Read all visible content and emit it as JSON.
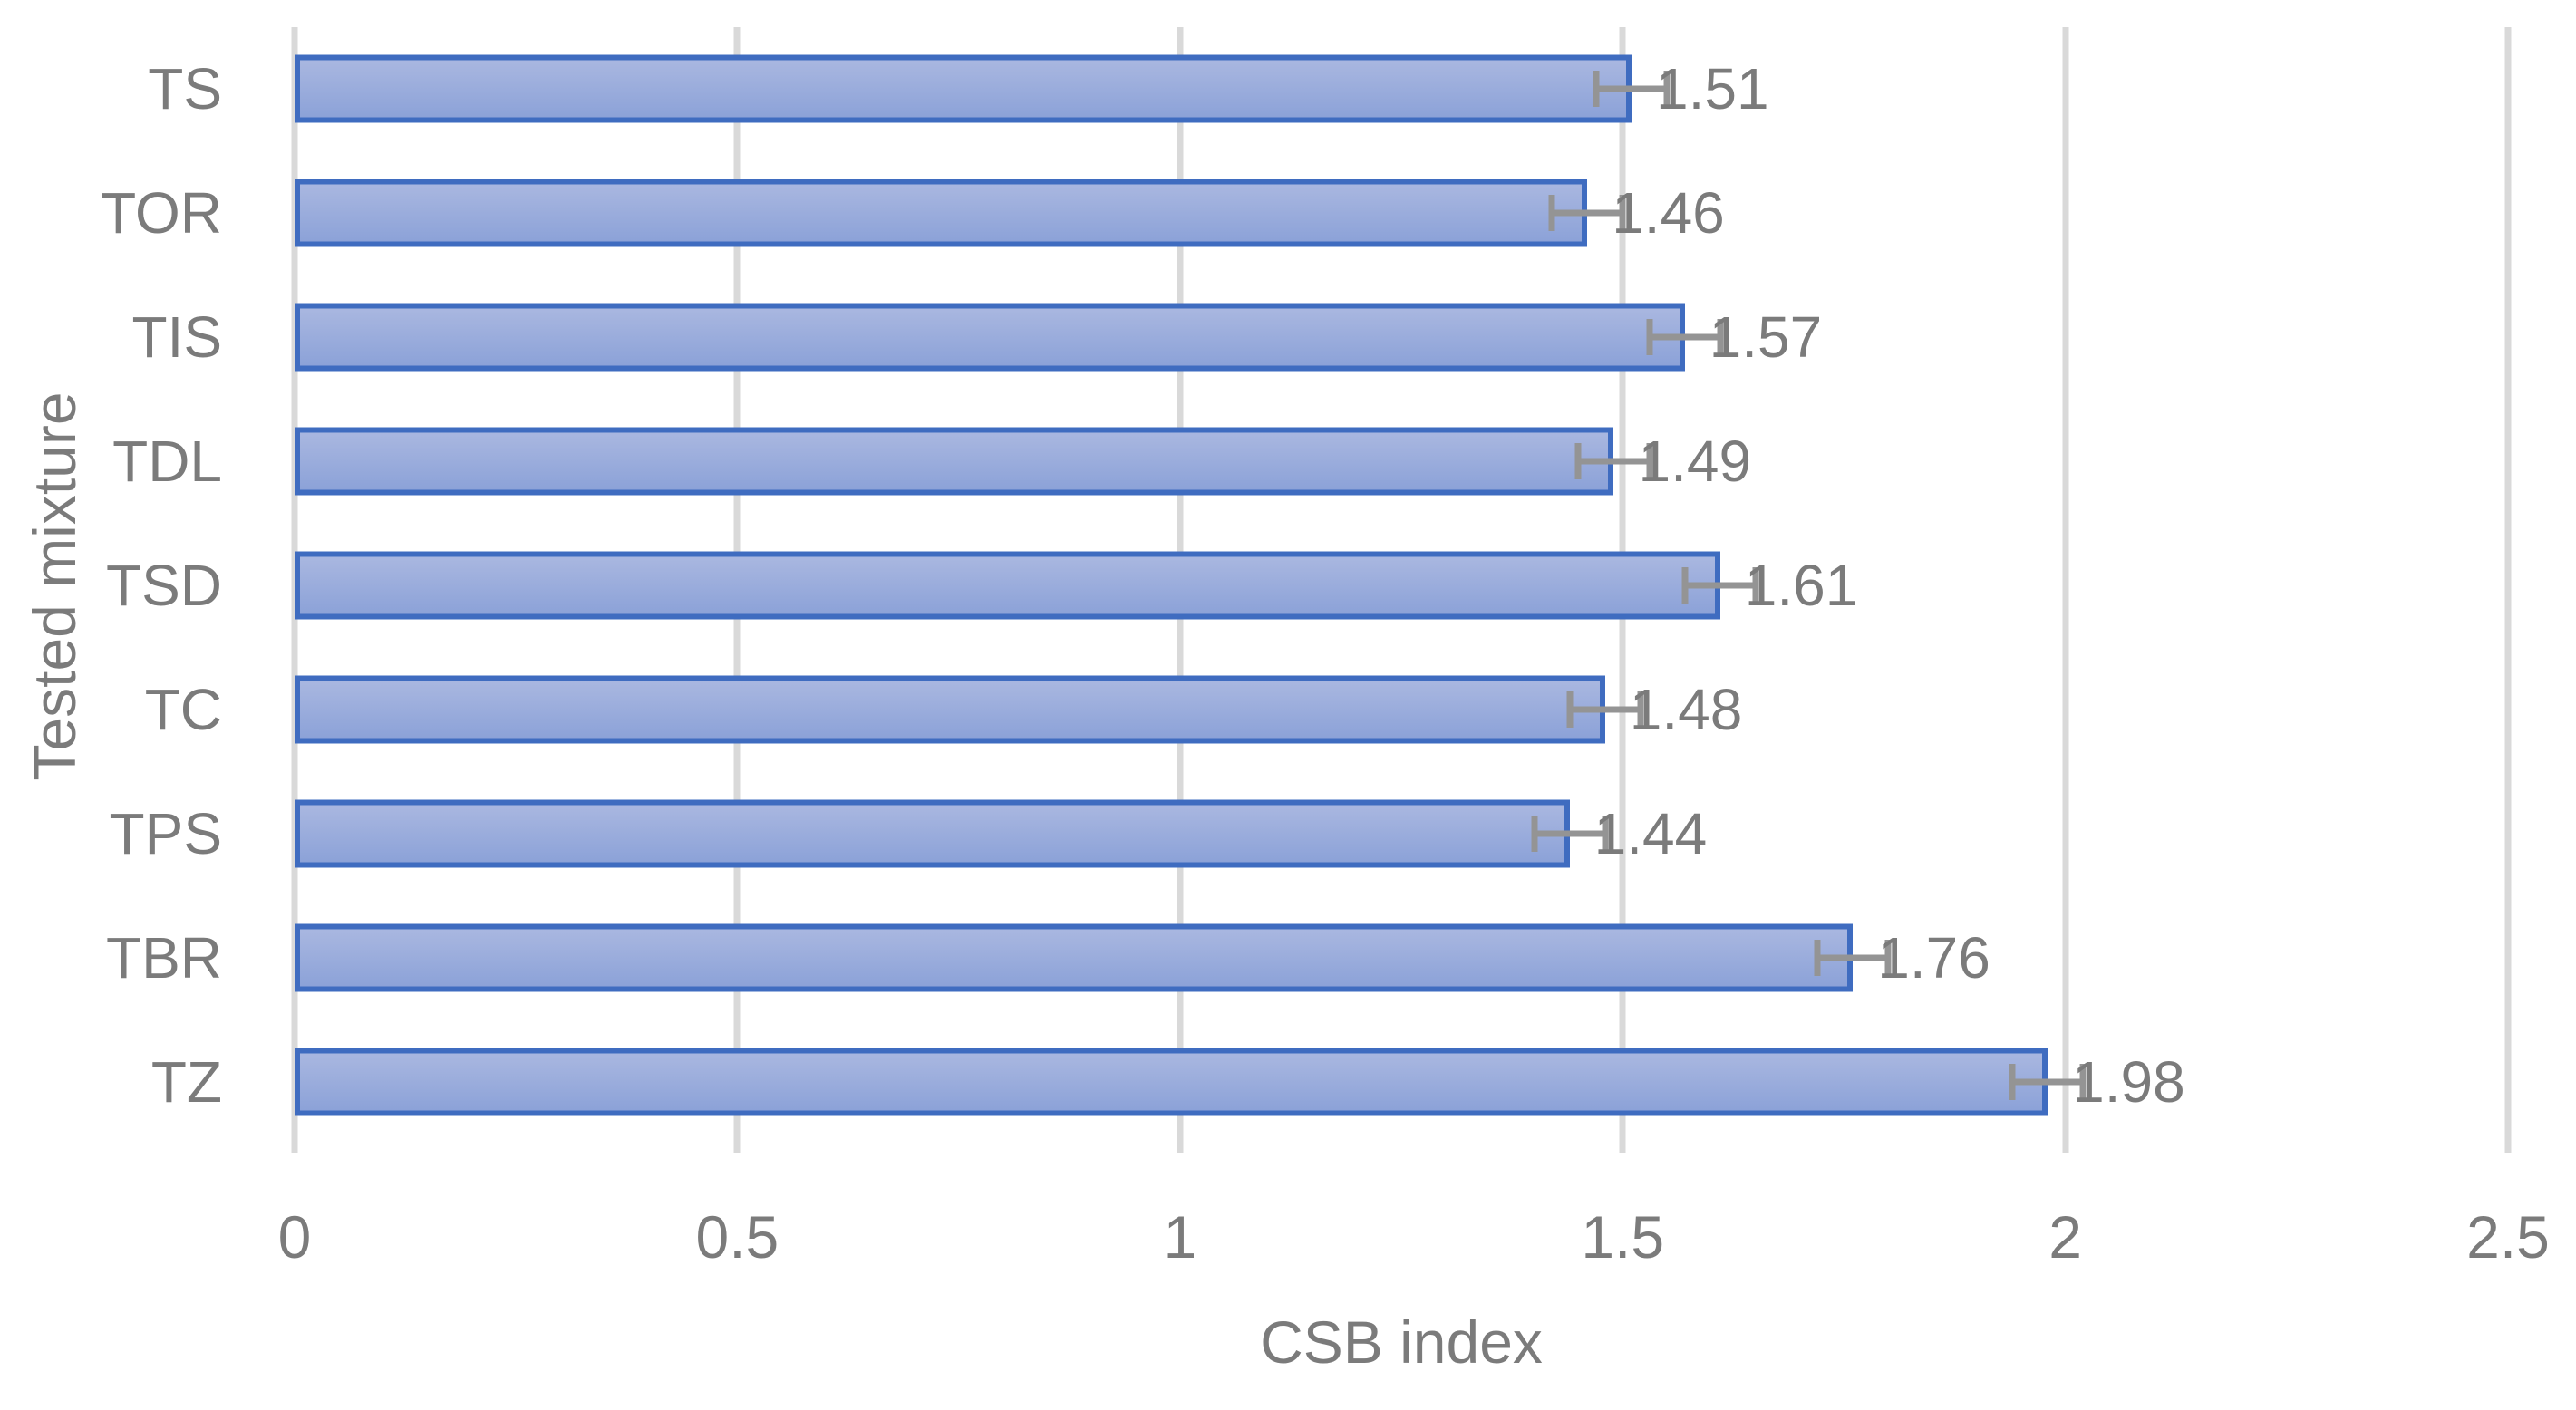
{
  "chart_data": {
    "type": "bar",
    "orientation": "horizontal",
    "title": "",
    "xlabel": "CSB index",
    "ylabel": "Tested mixture",
    "categories": [
      "TS",
      "TOR",
      "TIS",
      "TDL",
      "TSD",
      "TC",
      "TPS",
      "TBR",
      "TZ"
    ],
    "values": [
      1.51,
      1.46,
      1.57,
      1.49,
      1.61,
      1.48,
      1.44,
      1.76,
      1.98
    ],
    "data_labels": [
      "1.51",
      "1.46",
      "1.57",
      "1.49",
      "1.61",
      "1.48",
      "1.44",
      "1.76",
      "1.98"
    ],
    "error_bar": 0.04,
    "xlim": [
      0,
      2.5
    ],
    "xticks": [
      0,
      0.5,
      1,
      1.5,
      2,
      2.5
    ],
    "xtick_labels": [
      "0",
      "0.5",
      "1",
      "1.5",
      "2",
      "2.5"
    ],
    "grid": "vertical",
    "legend": "none",
    "colors": {
      "bar_fill_top": "#A9B7E0",
      "bar_fill_bottom": "#8CA2D8",
      "bar_border": "#3F6CC0",
      "gridline": "#D9D9D9",
      "text": "#7B7B7B",
      "error_bar": "#949494",
      "background": "#FFFFFF"
    }
  }
}
